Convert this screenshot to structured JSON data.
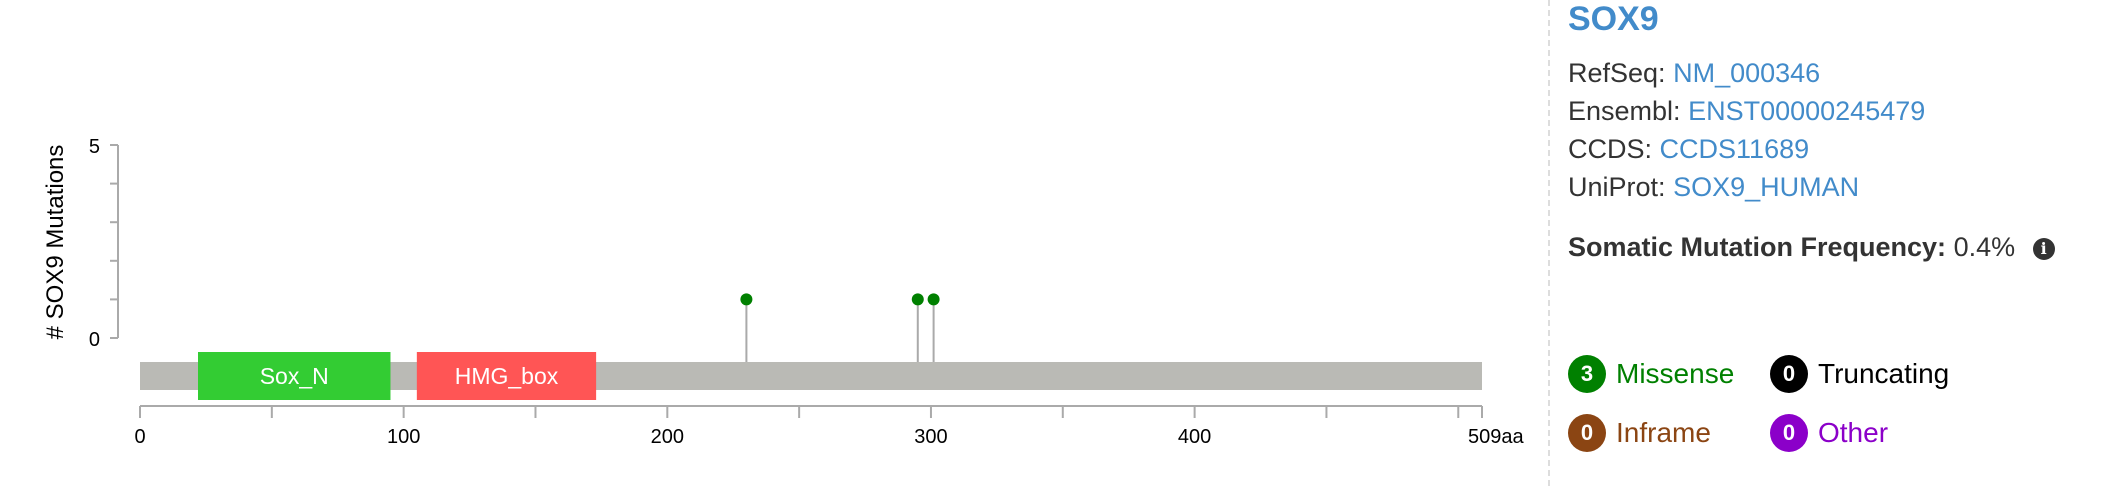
{
  "chart_data": {
    "type": "lollipop",
    "gene": "SOX9",
    "ylabel": "# SOX9 Mutations",
    "y_ticks": [
      "5",
      "0"
    ],
    "ylim": [
      0,
      5
    ],
    "x_ticks": [
      "0",
      "100",
      "200",
      "300",
      "400",
      "509aa"
    ],
    "xlim": [
      0,
      509
    ],
    "protein_length": 509,
    "domains": [
      {
        "name": "Sox_N",
        "start": 22,
        "end": 95,
        "color": "#33cc33"
      },
      {
        "name": "HMG_box",
        "start": 105,
        "end": 173,
        "color": "#ff5555"
      }
    ],
    "mutations": [
      {
        "position": 230,
        "count": 1,
        "type": "Missense"
      },
      {
        "position": 295,
        "count": 1,
        "type": "Missense"
      },
      {
        "position": 301,
        "count": 1,
        "type": "Missense"
      }
    ],
    "colors": {
      "backbone": "#babab5",
      "lollipop": "#008000",
      "stem": "#aaaaaa",
      "axis": "#aaaaaa"
    }
  },
  "gene_info": {
    "title": "SOX9",
    "ids": [
      {
        "label": "RefSeq:",
        "value": "NM_000346"
      },
      {
        "label": "Ensembl:",
        "value": "ENST00000245479"
      },
      {
        "label": "CCDS:",
        "value": "CCDS11689"
      },
      {
        "label": "UniProt:",
        "value": "SOX9_HUMAN"
      }
    ],
    "frequency_label": "Somatic Mutation Frequency:",
    "frequency_value": "0.4%"
  },
  "legend": [
    {
      "count": "3",
      "label": "Missense",
      "badge_color": "#008000",
      "text_color": "#008000"
    },
    {
      "count": "0",
      "label": "Truncating",
      "badge_color": "#000000",
      "text_color": "#000000"
    },
    {
      "count": "0",
      "label": "Inframe",
      "badge_color": "#8b4513",
      "text_color": "#8b4513"
    },
    {
      "count": "0",
      "label": "Other",
      "badge_color": "#8b00c9",
      "text_color": "#8b00c9"
    }
  ]
}
